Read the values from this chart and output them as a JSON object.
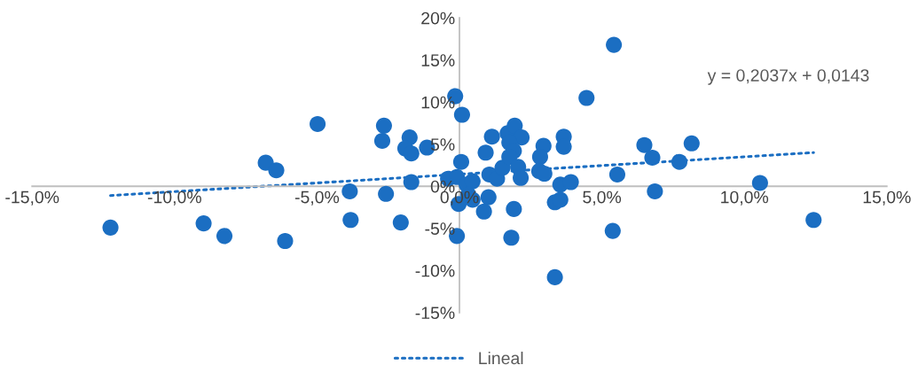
{
  "chart_data": {
    "type": "scatter",
    "xlim": [
      -15,
      15
    ],
    "ylim": [
      -15,
      20
    ],
    "xticks": [
      {
        "value": -15,
        "label": "-15,0%"
      },
      {
        "value": -10,
        "label": "-10,0%"
      },
      {
        "value": -5,
        "label": "-5,0%"
      },
      {
        "value": 0,
        "label": "0,0%"
      },
      {
        "value": 5,
        "label": "5,0%"
      },
      {
        "value": 10,
        "label": "10,0%"
      },
      {
        "value": 15,
        "label": "15,0%"
      }
    ],
    "yticks": [
      {
        "value": -15,
        "label": "-15%"
      },
      {
        "value": -10,
        "label": "-10%"
      },
      {
        "value": -5,
        "label": "-5%"
      },
      {
        "value": 0,
        "label": "0%"
      },
      {
        "value": 5,
        "label": "5%"
      },
      {
        "value": 10,
        "label": "10%"
      },
      {
        "value": 15,
        "label": "15%"
      },
      {
        "value": 20,
        "label": "20%"
      }
    ],
    "grid": false,
    "legend": "bottom",
    "marker": "circle",
    "annotations": [
      "y = 0,2037x + 0,0143"
    ],
    "series": [
      {
        "color": "#1b6ec2",
        "x": [
          -12.25,
          -8.98,
          -8.25,
          -6.12,
          -6.8,
          -6.43,
          -4.98,
          -3.85,
          -3.82,
          -2.65,
          -2.71,
          -2.58,
          -1.75,
          -1.9,
          -1.69,
          -1.69,
          -1.14,
          -2.06,
          -0.15,
          0.09,
          0.06,
          -0.4,
          -0.09,
          0.25,
          0.46,
          0.31,
          0.46,
          -0.03,
          -0.09,
          1.02,
          0.86,
          0.92,
          1.14,
          1.05,
          1.32,
          1.51,
          1.69,
          1.94,
          2.18,
          1.75,
          1.91,
          1.75,
          2.06,
          2.15,
          1.91,
          1.82,
          2.95,
          2.83,
          2.8,
          2.98,
          3.66,
          3.66,
          3.54,
          3.91,
          3.35,
          3.54,
          4.46,
          3.35,
          5.42,
          5.38,
          5.54,
          6.49,
          6.77,
          6.86,
          7.72,
          8.15,
          10.55,
          12.43
        ],
        "values": [
          -4.9,
          -4.4,
          -5.9,
          -6.5,
          2.8,
          1.9,
          7.4,
          -0.6,
          -4.0,
          7.2,
          5.4,
          -0.9,
          5.8,
          4.5,
          3.9,
          0.5,
          4.6,
          -4.3,
          10.7,
          8.5,
          2.9,
          0.9,
          1.1,
          0.2,
          0.6,
          -1.0,
          -1.6,
          -2.1,
          -5.9,
          -1.3,
          -3.0,
          4.0,
          5.9,
          1.4,
          0.9,
          2.2,
          6.3,
          7.2,
          5.8,
          5.2,
          4.2,
          3.5,
          2.3,
          1.0,
          -2.7,
          -6.1,
          4.8,
          3.5,
          1.8,
          1.5,
          5.9,
          4.7,
          0.2,
          0.5,
          -1.9,
          -1.6,
          10.5,
          -10.8,
          16.8,
          -5.3,
          1.4,
          4.9,
          3.4,
          -0.6,
          2.9,
          5.1,
          0.4,
          -4.0
        ]
      },
      {
        "type": "line",
        "name": "Lineal",
        "color": "#1b6ec2",
        "line_style": "dotted",
        "marker": "none",
        "x": [
          -12.25,
          12.43
        ],
        "values": [
          -1.1,
          4.0
        ]
      }
    ]
  }
}
